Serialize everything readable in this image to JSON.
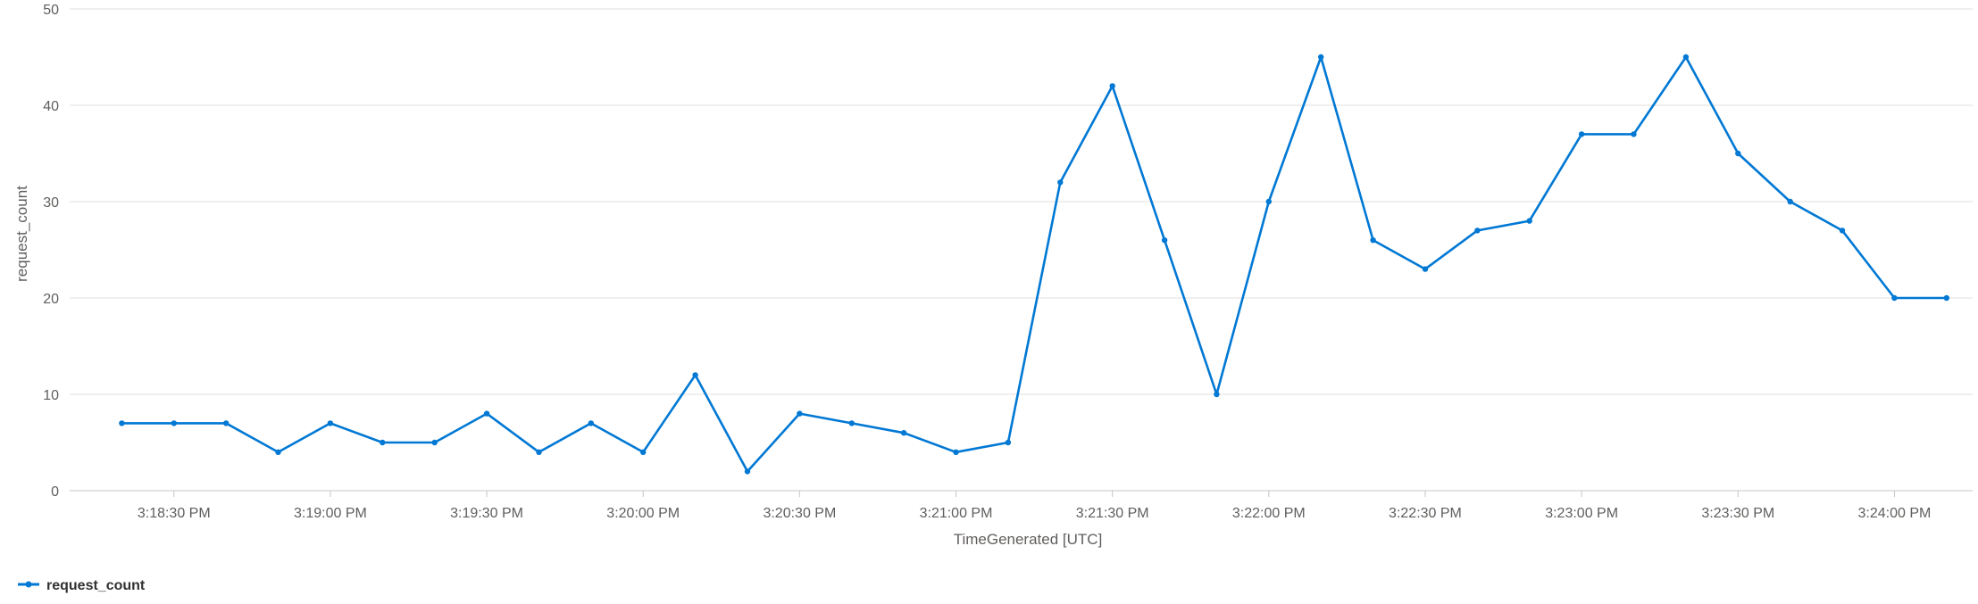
{
  "chart_data": {
    "type": "line",
    "title": "",
    "xlabel": "TimeGenerated [UTC]",
    "ylabel": "request_count",
    "ylim": [
      0,
      50
    ],
    "y_ticks": [
      0,
      10,
      20,
      30,
      40,
      50
    ],
    "x_range": [
      "3:18:10 PM",
      "3:24:15 PM"
    ],
    "x_ticks": [
      "3:18:30 PM",
      "3:19:00 PM",
      "3:19:30 PM",
      "3:20:00 PM",
      "3:20:30 PM",
      "3:21:00 PM",
      "3:21:30 PM",
      "3:22:00 PM",
      "3:22:30 PM",
      "3:23:00 PM",
      "3:23:30 PM",
      "3:24:00 PM"
    ],
    "grid": true,
    "legend_position": "bottom-left",
    "x": [
      "3:18:20 PM",
      "3:18:30 PM",
      "3:18:40 PM",
      "3:18:50 PM",
      "3:19:00 PM",
      "3:19:10 PM",
      "3:19:20 PM",
      "3:19:30 PM",
      "3:19:40 PM",
      "3:19:50 PM",
      "3:20:00 PM",
      "3:20:10 PM",
      "3:20:20 PM",
      "3:20:30 PM",
      "3:20:40 PM",
      "3:20:50 PM",
      "3:21:00 PM",
      "3:21:10 PM",
      "3:21:20 PM",
      "3:21:30 PM",
      "3:21:40 PM",
      "3:21:50 PM",
      "3:22:00 PM",
      "3:22:10 PM",
      "3:22:20 PM",
      "3:22:30 PM",
      "3:22:40 PM",
      "3:22:50 PM",
      "3:23:00 PM",
      "3:23:10 PM",
      "3:23:20 PM",
      "3:23:30 PM",
      "3:23:40 PM",
      "3:23:50 PM",
      "3:24:00 PM",
      "3:24:10 PM"
    ],
    "series": [
      {
        "name": "request_count",
        "color": "#0078d4",
        "values": [
          7,
          7,
          7,
          4,
          7,
          5,
          5,
          8,
          4,
          7,
          4,
          12,
          2,
          8,
          7,
          6,
          4,
          5,
          32,
          42,
          26,
          10,
          30,
          45,
          26,
          23,
          27,
          28,
          37,
          37,
          45,
          35,
          30,
          27,
          20,
          20
        ]
      }
    ]
  }
}
